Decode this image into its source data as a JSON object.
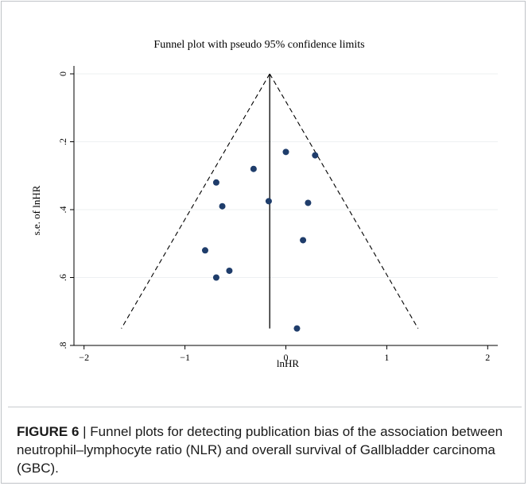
{
  "chart_data": {
    "type": "scatter",
    "title": "Funnel plot with pseudo 95% confidence limits",
    "xlabel": "lnHR",
    "ylabel": "s.e. of lnHR",
    "xlim": [
      -2.1,
      2.1
    ],
    "ylim": [
      0,
      0.8
    ],
    "y_reversed": true,
    "x_ticks": [
      "−2",
      "−1",
      "0",
      "1",
      "2"
    ],
    "x_tick_values": [
      -2,
      -1,
      0,
      1,
      2
    ],
    "y_ticks": [
      "0",
      ".2",
      ".4",
      ".6",
      ".8"
    ],
    "y_tick_values": [
      0,
      0.2,
      0.4,
      0.6,
      0.8
    ],
    "grid": true,
    "pooled_estimate": -0.16,
    "funnel_max_se": 0.75,
    "points": [
      {
        "x": 0.0,
        "y": 0.23
      },
      {
        "x": 0.29,
        "y": 0.24
      },
      {
        "x": -0.32,
        "y": 0.28
      },
      {
        "x": -0.69,
        "y": 0.32
      },
      {
        "x": -0.17,
        "y": 0.375
      },
      {
        "x": 0.22,
        "y": 0.38
      },
      {
        "x": -0.63,
        "y": 0.39
      },
      {
        "x": 0.17,
        "y": 0.49
      },
      {
        "x": -0.8,
        "y": 0.52
      },
      {
        "x": -0.56,
        "y": 0.58
      },
      {
        "x": -0.69,
        "y": 0.6
      },
      {
        "x": 0.11,
        "y": 0.75
      }
    ],
    "point_color": "#1f3d6b"
  },
  "caption": {
    "label": "FIGURE 6",
    "separator": " | ",
    "text": "Funnel plots for detecting publication bias of the association between neutrophil–lymphocyte ratio (NLR) and overall survival of Gallbladder carcinoma (GBC)."
  }
}
